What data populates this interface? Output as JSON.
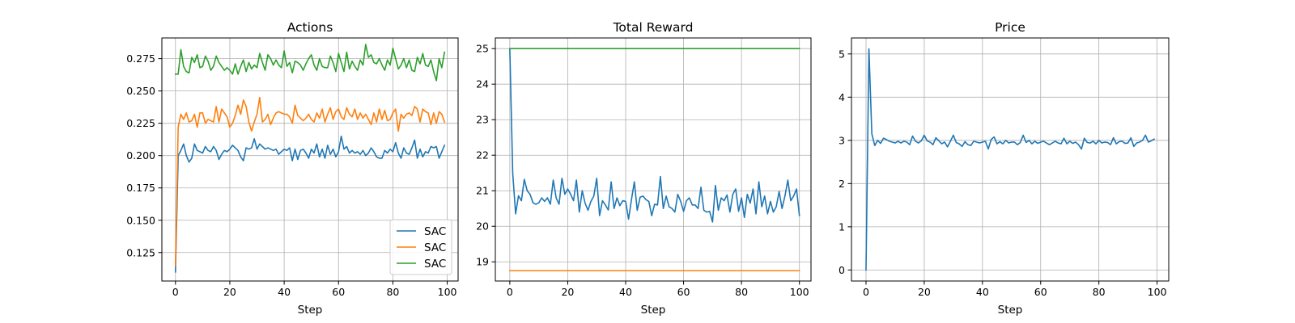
{
  "colors": {
    "blue": "#1f77b4",
    "orange": "#ff7f0e",
    "green": "#2ca02c",
    "grid": "#b0b0b0"
  },
  "chart_data": [
    {
      "type": "line",
      "title": "Actions",
      "xlabel": "Step",
      "ylabel": "",
      "xlim": [
        -5,
        104
      ],
      "ylim": [
        0.103,
        0.291
      ],
      "xticks": [
        0,
        20,
        40,
        60,
        80,
        100
      ],
      "yticks": [
        0.125,
        0.15,
        0.175,
        0.2,
        0.225,
        0.25,
        0.275
      ],
      "ytick_labels": [
        "0.125",
        "0.150",
        "0.175",
        "0.200",
        "0.225",
        "0.250",
        "0.275"
      ],
      "grid": true,
      "legend": "lower-right",
      "series": [
        {
          "name": "SAC",
          "color": "#1f77b4",
          "values": [
            0.11,
            0.2,
            0.204,
            0.209,
            0.2,
            0.195,
            0.198,
            0.209,
            0.204,
            0.203,
            0.202,
            0.207,
            0.204,
            0.203,
            0.207,
            0.204,
            0.197,
            0.201,
            0.204,
            0.203,
            0.205,
            0.208,
            0.206,
            0.204,
            0.199,
            0.196,
            0.206,
            0.205,
            0.206,
            0.213,
            0.205,
            0.209,
            0.207,
            0.205,
            0.206,
            0.205,
            0.204,
            0.205,
            0.201,
            0.203,
            0.205,
            0.204,
            0.206,
            0.196,
            0.205,
            0.197,
            0.204,
            0.205,
            0.202,
            0.198,
            0.205,
            0.202,
            0.209,
            0.199,
            0.205,
            0.198,
            0.208,
            0.201,
            0.205,
            0.199,
            0.203,
            0.215,
            0.205,
            0.207,
            0.202,
            0.204,
            0.202,
            0.203,
            0.201,
            0.204,
            0.2,
            0.202,
            0.206,
            0.203,
            0.199,
            0.198,
            0.198,
            0.204,
            0.202,
            0.205,
            0.203,
            0.21,
            0.202,
            0.198,
            0.206,
            0.202,
            0.201,
            0.206,
            0.212,
            0.198,
            0.205,
            0.199,
            0.203,
            0.202,
            0.207,
            0.206,
            0.207,
            0.198,
            0.203,
            0.208
          ]
        },
        {
          "name": "SAC",
          "color": "#ff7f0e",
          "values": [
            0.115,
            0.222,
            0.232,
            0.228,
            0.233,
            0.226,
            0.227,
            0.232,
            0.222,
            0.233,
            0.233,
            0.225,
            0.228,
            0.227,
            0.226,
            0.238,
            0.226,
            0.236,
            0.233,
            0.23,
            0.222,
            0.225,
            0.231,
            0.239,
            0.232,
            0.243,
            0.238,
            0.226,
            0.219,
            0.226,
            0.232,
            0.245,
            0.226,
            0.228,
            0.232,
            0.224,
            0.229,
            0.233,
            0.234,
            0.233,
            0.232,
            0.232,
            0.23,
            0.225,
            0.239,
            0.231,
            0.229,
            0.227,
            0.229,
            0.232,
            0.228,
            0.226,
            0.233,
            0.229,
            0.236,
            0.226,
            0.232,
            0.237,
            0.228,
            0.234,
            0.236,
            0.23,
            0.228,
            0.237,
            0.232,
            0.23,
            0.236,
            0.228,
            0.233,
            0.229,
            0.232,
            0.228,
            0.224,
            0.233,
            0.226,
            0.236,
            0.228,
            0.235,
            0.227,
            0.228,
            0.233,
            0.236,
            0.219,
            0.232,
            0.229,
            0.232,
            0.233,
            0.231,
            0.238,
            0.236,
            0.226,
            0.236,
            0.234,
            0.233,
            0.224,
            0.233,
            0.225,
            0.234,
            0.232,
            0.226
          ]
        },
        {
          "name": "SAC",
          "color": "#2ca02c",
          "values": [
            0.263,
            0.263,
            0.282,
            0.269,
            0.265,
            0.264,
            0.276,
            0.272,
            0.278,
            0.268,
            0.269,
            0.277,
            0.273,
            0.266,
            0.269,
            0.277,
            0.272,
            0.269,
            0.266,
            0.268,
            0.266,
            0.263,
            0.271,
            0.263,
            0.269,
            0.274,
            0.265,
            0.272,
            0.267,
            0.27,
            0.268,
            0.279,
            0.272,
            0.266,
            0.278,
            0.275,
            0.27,
            0.274,
            0.27,
            0.268,
            0.281,
            0.269,
            0.272,
            0.264,
            0.273,
            0.272,
            0.27,
            0.266,
            0.271,
            0.275,
            0.278,
            0.27,
            0.266,
            0.275,
            0.269,
            0.268,
            0.268,
            0.277,
            0.272,
            0.265,
            0.279,
            0.272,
            0.265,
            0.28,
            0.267,
            0.273,
            0.269,
            0.266,
            0.274,
            0.27,
            0.286,
            0.276,
            0.278,
            0.272,
            0.271,
            0.275,
            0.27,
            0.266,
            0.274,
            0.27,
            0.283,
            0.275,
            0.267,
            0.27,
            0.275,
            0.268,
            0.274,
            0.266,
            0.265,
            0.276,
            0.271,
            0.279,
            0.27,
            0.269,
            0.274,
            0.265,
            0.258,
            0.275,
            0.268,
            0.28
          ]
        }
      ]
    },
    {
      "type": "line",
      "title": "Total Reward",
      "xlabel": "Step",
      "ylabel": "",
      "xlim": [
        -5,
        104
      ],
      "ylim": [
        18.46,
        25.3
      ],
      "xticks": [
        0,
        20,
        40,
        60,
        80,
        100
      ],
      "yticks": [
        19,
        20,
        21,
        22,
        23,
        24,
        25
      ],
      "ytick_labels": [
        "19",
        "20",
        "21",
        "22",
        "23",
        "24",
        "25"
      ],
      "grid": true,
      "series": [
        {
          "color": "#1f77b4",
          "values": [
            24.98,
            21.5,
            20.35,
            20.86,
            20.72,
            21.32,
            21.0,
            20.9,
            20.66,
            20.62,
            20.66,
            20.8,
            20.7,
            20.8,
            20.62,
            21.3,
            20.8,
            20.62,
            21.35,
            20.9,
            21.05,
            20.9,
            20.72,
            21.3,
            20.4,
            21.0,
            20.65,
            20.45,
            20.7,
            20.85,
            21.35,
            20.3,
            20.72,
            20.6,
            20.46,
            21.25,
            20.5,
            20.8,
            20.58,
            20.72,
            20.7,
            20.2,
            20.75,
            21.25,
            20.45,
            20.82,
            20.85,
            20.75,
            20.7,
            20.3,
            20.62,
            20.6,
            21.4,
            20.5,
            20.85,
            20.55,
            20.5,
            20.4,
            20.9,
            20.7,
            20.42,
            20.72,
            20.8,
            20.6,
            20.6,
            20.5,
            21.1,
            20.45,
            20.4,
            20.42,
            20.12,
            21.15,
            20.45,
            20.8,
            20.72,
            20.88,
            20.4,
            20.9,
            21.05,
            20.42,
            20.8,
            20.25,
            20.9,
            20.65,
            21.05,
            20.35,
            21.25,
            20.55,
            20.85,
            20.35,
            20.7,
            20.4,
            20.55,
            20.98,
            20.5,
            20.85,
            21.3,
            20.72,
            20.85,
            21.05,
            20.3
          ]
        },
        {
          "color": "#ff7f0e",
          "values": [
            18.75,
            18.75
          ],
          "x": [
            0,
            100
          ]
        },
        {
          "color": "#2ca02c",
          "values": [
            25.0,
            25.0
          ],
          "x": [
            0,
            100
          ]
        }
      ]
    },
    {
      "type": "line",
      "title": "Price",
      "xlabel": "Step",
      "ylabel": "",
      "xlim": [
        -5,
        104
      ],
      "ylim": [
        -0.255,
        5.37
      ],
      "xticks": [
        0,
        20,
        40,
        60,
        80,
        100
      ],
      "yticks": [
        0,
        1,
        2,
        3,
        4,
        5
      ],
      "ytick_labels": [
        "0",
        "1",
        "2",
        "3",
        "4",
        "5"
      ],
      "grid": true,
      "series": [
        {
          "color": "#1f77b4",
          "values": [
            0.0,
            5.12,
            3.15,
            2.88,
            3.0,
            2.93,
            3.05,
            3.02,
            2.98,
            2.96,
            2.94,
            2.98,
            2.94,
            2.98,
            2.96,
            2.9,
            3.1,
            2.98,
            2.94,
            2.99,
            3.12,
            2.99,
            2.96,
            2.9,
            3.06,
            2.99,
            2.92,
            2.96,
            2.85,
            2.98,
            3.12,
            2.95,
            2.92,
            2.86,
            2.97,
            2.9,
            2.88,
            2.98,
            2.96,
            2.94,
            2.96,
            2.98,
            2.8,
            3.02,
            3.08,
            2.92,
            2.97,
            2.92,
            3.0,
            2.94,
            2.96,
            2.96,
            2.9,
            2.95,
            3.12,
            2.95,
            3.0,
            2.92,
            2.98,
            2.93,
            2.96,
            2.98,
            2.94,
            2.9,
            2.94,
            2.98,
            2.94,
            2.92,
            3.05,
            2.92,
            2.98,
            2.93,
            2.96,
            2.9,
            2.8,
            3.05,
            2.95,
            2.94,
            2.98,
            2.92,
            3.0,
            2.94,
            2.96,
            2.95,
            2.9,
            3.06,
            2.92,
            2.97,
            2.98,
            2.93,
            2.94,
            3.06,
            2.86,
            2.94,
            2.96,
            3.0,
            3.12,
            2.96,
            2.99,
            3.03
          ]
        }
      ]
    }
  ]
}
